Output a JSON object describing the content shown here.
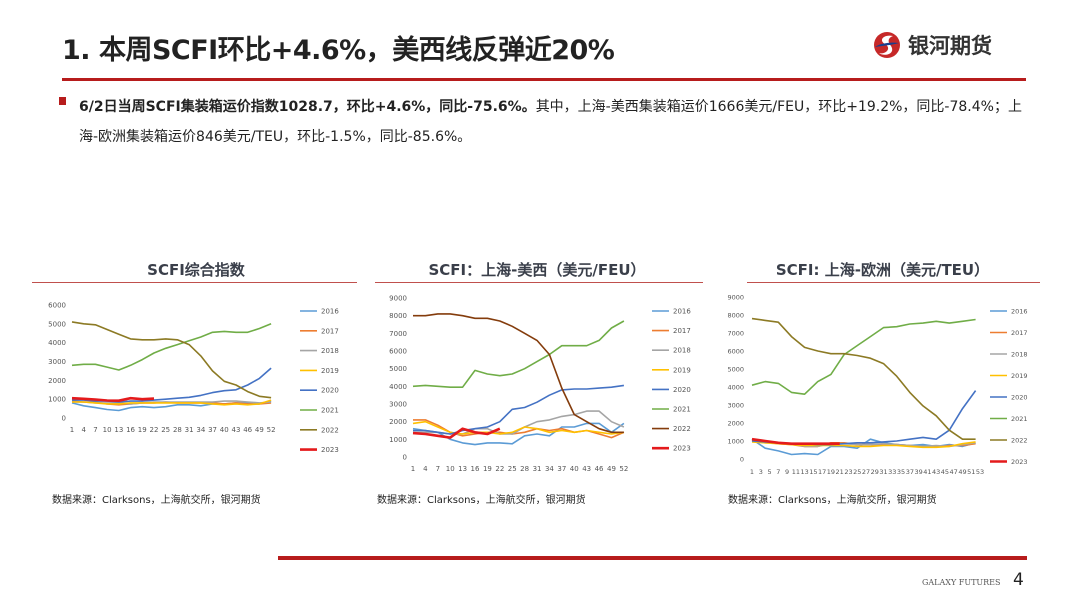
{
  "header": {
    "title": "1. 本周SCFI环比+4.6%，美西线反弹近20%",
    "logo_text": "银河期货"
  },
  "summary": {
    "bold": "6/2日当周SCFI集装箱运价指数1028.7，环比+4.6%，同比-75.6%。",
    "normal": "其中，上海-美西集装箱运价1666美元/FEU，环比+19.2%，同比-78.4%；上海-欧洲集装箱运价846美元/TEU，环比-1.5%，同比-85.6%。"
  },
  "footer": {
    "brand": "GALAXY FUTURES",
    "page": "4"
  },
  "chart_data": [
    {
      "type": "line",
      "title": "SCFI综合指数",
      "source": "数据来源：Clarksons，上海航交所，银河期货",
      "ylim": [
        0,
        6000
      ],
      "yticks": [
        0,
        1000,
        2000,
        3000,
        4000,
        5000,
        6000
      ],
      "xticks": [
        1,
        4,
        7,
        10,
        13,
        16,
        19,
        22,
        25,
        28,
        31,
        34,
        37,
        40,
        43,
        46,
        49,
        52
      ],
      "xlim": [
        1,
        53
      ],
      "legend": "right",
      "x": [
        1,
        4,
        7,
        10,
        13,
        16,
        19,
        22,
        25,
        28,
        31,
        34,
        37,
        40,
        43,
        46,
        49,
        52
      ],
      "series": [
        {
          "name": "2016",
          "color": "#5b9bd5",
          "values": [
            800,
            650,
            550,
            450,
            400,
            550,
            600,
            550,
            600,
            700,
            700,
            650,
            750,
            750,
            800,
            800,
            750,
            900
          ]
        },
        {
          "name": "2017",
          "color": "#ed7d31",
          "values": [
            900,
            850,
            850,
            750,
            700,
            750,
            800,
            800,
            850,
            800,
            800,
            800,
            800,
            750,
            800,
            750,
            750,
            800
          ]
        },
        {
          "name": "2018",
          "color": "#a5a5a5",
          "values": [
            850,
            850,
            800,
            800,
            800,
            750,
            800,
            850,
            850,
            850,
            850,
            850,
            850,
            900,
            900,
            850,
            800,
            850
          ]
        },
        {
          "name": "2019",
          "color": "#ffc000",
          "values": [
            850,
            850,
            800,
            750,
            750,
            800,
            800,
            800,
            800,
            800,
            800,
            800,
            750,
            700,
            750,
            700,
            750,
            950
          ]
        },
        {
          "name": "2020",
          "color": "#4472c4",
          "values": [
            950,
            950,
            900,
            900,
            850,
            900,
            900,
            950,
            1000,
            1050,
            1100,
            1200,
            1350,
            1450,
            1500,
            1750,
            2100,
            2650
          ]
        },
        {
          "name": "2021",
          "color": "#70ad47",
          "values": [
            2800,
            2850,
            2850,
            2700,
            2550,
            2800,
            3100,
            3450,
            3700,
            3900,
            4100,
            4300,
            4550,
            4600,
            4550,
            4550,
            4750,
            5000
          ]
        },
        {
          "name": "2022",
          "color": "#8c7a24",
          "values": [
            5100,
            5000,
            4950,
            4700,
            4450,
            4200,
            4150,
            4150,
            4200,
            4150,
            3900,
            3300,
            2500,
            1950,
            1750,
            1400,
            1150,
            1080
          ]
        },
        {
          "name": "2023",
          "color": "#e41a1c",
          "x": [
            1,
            4,
            7,
            10,
            13,
            16,
            19,
            22
          ],
          "values": [
            1050,
            1020,
            980,
            930,
            920,
            1050,
            1000,
            1030
          ]
        }
      ]
    },
    {
      "type": "line",
      "title": "SCFI：上海-美西（美元/FEU）",
      "source": "数据来源：Clarksons，上海航交所，银河期货",
      "ylim": [
        0,
        9000
      ],
      "yticks": [
        0,
        1000,
        2000,
        3000,
        4000,
        5000,
        6000,
        7000,
        8000,
        9000
      ],
      "xticks": [
        1,
        4,
        7,
        10,
        13,
        16,
        19,
        22,
        25,
        28,
        31,
        34,
        37,
        40,
        43,
        46,
        49,
        52
      ],
      "xlim": [
        1,
        53
      ],
      "legend": "right",
      "x": [
        1,
        4,
        7,
        10,
        13,
        16,
        19,
        22,
        25,
        28,
        31,
        34,
        37,
        40,
        43,
        46,
        49,
        52
      ],
      "series": [
        {
          "name": "2016",
          "color": "#5b9bd5",
          "values": [
            1600,
            1500,
            1400,
            1000,
            800,
            700,
            800,
            800,
            750,
            1200,
            1300,
            1200,
            1700,
            1700,
            1900,
            1900,
            1400,
            1900
          ]
        },
        {
          "name": "2017",
          "color": "#ed7d31",
          "values": [
            2100,
            2100,
            1800,
            1400,
            1200,
            1300,
            1400,
            1400,
            1300,
            1400,
            1600,
            1500,
            1600,
            1400,
            1500,
            1300,
            1100,
            1400
          ]
        },
        {
          "name": "2018",
          "color": "#a5a5a5",
          "values": [
            1400,
            1400,
            1400,
            1300,
            1300,
            1600,
            1600,
            1300,
            1300,
            1700,
            2000,
            2100,
            2300,
            2400,
            2600,
            2600,
            2000,
            1700
          ]
        },
        {
          "name": "2019",
          "color": "#ffc000",
          "values": [
            1900,
            2000,
            1700,
            1400,
            1300,
            1400,
            1400,
            1300,
            1400,
            1700,
            1600,
            1400,
            1500,
            1400,
            1500,
            1400,
            1300,
            1400
          ]
        },
        {
          "name": "2020",
          "color": "#4472c4",
          "values": [
            1500,
            1500,
            1400,
            1300,
            1500,
            1600,
            1700,
            2000,
            2700,
            2800,
            3100,
            3500,
            3800,
            3850,
            3850,
            3900,
            3950,
            4050
          ]
        },
        {
          "name": "2021",
          "color": "#70ad47",
          "values": [
            4000,
            4050,
            4000,
            3950,
            3950,
            4900,
            4700,
            4600,
            4700,
            5000,
            5400,
            5800,
            6300,
            6300,
            6300,
            6600,
            7300,
            7700
          ]
        },
        {
          "name": "2022",
          "color": "#843c0c",
          "values": [
            8000,
            8000,
            8100,
            8100,
            8000,
            7850,
            7850,
            7700,
            7400,
            7000,
            6600,
            5800,
            3900,
            2400,
            2000,
            1600,
            1400,
            1400
          ]
        },
        {
          "name": "2023",
          "color": "#e41a1c",
          "x": [
            1,
            4,
            7,
            10,
            13,
            16,
            19,
            22
          ],
          "values": [
            1350,
            1300,
            1200,
            1100,
            1600,
            1400,
            1300,
            1600
          ]
        }
      ]
    },
    {
      "type": "line",
      "title": "SCFI: 上海-欧洲（美元/TEU）",
      "source": "数据来源：Clarksons，上海航交所，银河期货",
      "ylim": [
        0,
        9000
      ],
      "yticks": [
        0,
        1000,
        2000,
        3000,
        4000,
        5000,
        6000,
        7000,
        8000,
        9000
      ],
      "xticks": [
        1,
        3,
        5,
        7,
        9,
        11,
        13,
        15,
        17,
        19,
        21,
        23,
        25,
        27,
        29,
        31,
        33,
        35,
        37,
        39,
        41,
        43,
        45,
        47,
        49,
        51,
        53
      ],
      "xlim": [
        1,
        53
      ],
      "legend": "right",
      "x": [
        1,
        4,
        7,
        10,
        13,
        16,
        19,
        22,
        25,
        28,
        31,
        34,
        37,
        40,
        43,
        46,
        49,
        52
      ],
      "series": [
        {
          "name": "2016",
          "color": "#5b9bd5",
          "values": [
            1100,
            600,
            450,
            250,
            300,
            250,
            700,
            700,
            600,
            1100,
            900,
            800,
            750,
            800,
            700,
            800,
            700,
            900
          ]
        },
        {
          "name": "2017",
          "color": "#ed7d31",
          "values": [
            1000,
            950,
            850,
            800,
            700,
            700,
            900,
            900,
            800,
            800,
            800,
            800,
            750,
            700,
            700,
            750,
            750,
            850
          ]
        },
        {
          "name": "2018",
          "color": "#a5a5a5",
          "values": [
            1000,
            900,
            900,
            850,
            700,
            700,
            850,
            850,
            800,
            800,
            850,
            800,
            750,
            700,
            750,
            700,
            800,
            900
          ]
        },
        {
          "name": "2019",
          "color": "#ffc000",
          "values": [
            950,
            900,
            850,
            800,
            750,
            750,
            750,
            750,
            700,
            700,
            750,
            750,
            700,
            650,
            650,
            700,
            850,
            950
          ]
        },
        {
          "name": "2020",
          "color": "#4472c4",
          "values": [
            1000,
            950,
            900,
            850,
            850,
            800,
            800,
            850,
            900,
            900,
            950,
            1000,
            1100,
            1200,
            1100,
            1600,
            2800,
            3800
          ]
        },
        {
          "name": "2021",
          "color": "#70ad47",
          "values": [
            4100,
            4300,
            4200,
            3700,
            3600,
            4300,
            4700,
            5800,
            6300,
            6800,
            7300,
            7350,
            7500,
            7550,
            7650,
            7550,
            7650,
            7750
          ]
        },
        {
          "name": "2022",
          "color": "#8c7a24",
          "values": [
            7800,
            7700,
            7600,
            6800,
            6200,
            6000,
            5850,
            5850,
            5750,
            5600,
            5300,
            4600,
            3700,
            2950,
            2400,
            1600,
            1100,
            1100
          ]
        },
        {
          "name": "2023",
          "color": "#e41a1c",
          "x": [
            1,
            4,
            7,
            10,
            13,
            16,
            19,
            21
          ],
          "values": [
            1100,
            1000,
            900,
            850,
            850,
            850,
            850,
            850
          ]
        }
      ]
    }
  ]
}
